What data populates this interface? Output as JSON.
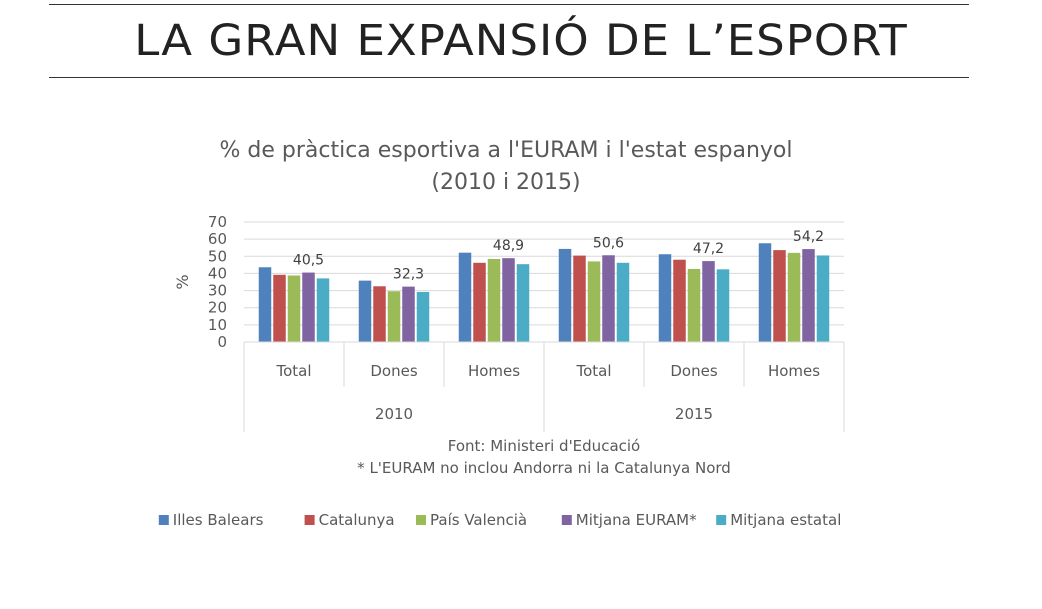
{
  "page": {
    "title": "LA GRAN EXPANSIÓ DE L’ESPORT"
  },
  "chart_data": {
    "type": "bar",
    "title_line1": "% de pràctica esportiva a l'EURAM i l'estat espanyol",
    "title_line2": "(2010 i 2015)",
    "ylabel": "%",
    "ylim": [
      0,
      70
    ],
    "yticks": [
      0,
      10,
      20,
      30,
      40,
      50,
      60,
      70
    ],
    "grid": true,
    "legend_position": "bottom",
    "groups": [
      {
        "label": "2010",
        "categories": [
          "Total",
          "Dones",
          "Homes"
        ]
      },
      {
        "label": "2015",
        "categories": [
          "Total",
          "Dones",
          "Homes"
        ]
      }
    ],
    "categories": [
      "Total",
      "Dones",
      "Homes",
      "Total",
      "Dones",
      "Homes"
    ],
    "series": [
      {
        "name": "Illes Balears",
        "color": "#4f81bd",
        "values": [
          43.6,
          35.8,
          52.1,
          54.3,
          51.2,
          57.6
        ]
      },
      {
        "name": "Catalunya",
        "color": "#c0504d",
        "values": [
          39.2,
          32.5,
          46.2,
          50.4,
          48.0,
          53.6
        ]
      },
      {
        "name": "País Valencià",
        "color": "#9bbb59",
        "values": [
          38.8,
          29.6,
          48.4,
          47.0,
          42.6,
          52.0
        ]
      },
      {
        "name": "Mitjana EURAM*",
        "color": "#8064a2",
        "values": [
          40.5,
          32.3,
          48.9,
          50.6,
          47.2,
          54.2
        ]
      },
      {
        "name": "Mitjana estatal",
        "color": "#4bacc6",
        "values": [
          37.1,
          29.2,
          45.4,
          46.2,
          42.4,
          50.5
        ]
      }
    ],
    "data_labels": [
      {
        "category_index": 0,
        "series_index": 3,
        "text": "40,5"
      },
      {
        "category_index": 1,
        "series_index": 3,
        "text": "32,3"
      },
      {
        "category_index": 2,
        "series_index": 3,
        "text": "48,9"
      },
      {
        "category_index": 3,
        "series_index": 3,
        "text": "50,6"
      },
      {
        "category_index": 4,
        "series_index": 3,
        "text": "47,2"
      },
      {
        "category_index": 5,
        "series_index": 3,
        "text": "54,2"
      }
    ],
    "source_note": "Font: Ministeri d'Educació",
    "footnote": "* L'EURAM no inclou Andorra ni la Catalunya Nord"
  }
}
